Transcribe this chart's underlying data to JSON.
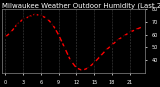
{
  "title": "Milwaukee Weather Outdoor Humidity (Last 24 Hours)",
  "hours": [
    0,
    1,
    2,
    3,
    4,
    5,
    6,
    7,
    8,
    9,
    10,
    11,
    12,
    13,
    14,
    15,
    16,
    17,
    18,
    19,
    20,
    21,
    22,
    23
  ],
  "humidity": [
    58,
    62,
    68,
    72,
    74,
    76,
    75,
    73,
    68,
    60,
    50,
    40,
    34,
    32,
    34,
    38,
    43,
    48,
    52,
    56,
    59,
    62,
    64,
    66
  ],
  "line_color": "#ff0000",
  "marker_color": "#000000",
  "bg_color": "#000000",
  "plot_bg": "#000000",
  "grid_color": "#555555",
  "text_color": "#ffffff",
  "ylim": [
    30,
    80
  ],
  "ytick_values": [
    40,
    50,
    60,
    70,
    80
  ],
  "xtick_values": [
    0,
    3,
    6,
    9,
    12,
    15,
    18,
    21
  ],
  "title_fontsize": 5.0,
  "tick_fontsize": 3.5,
  "linewidth": 1.0,
  "markersize": 1.8
}
